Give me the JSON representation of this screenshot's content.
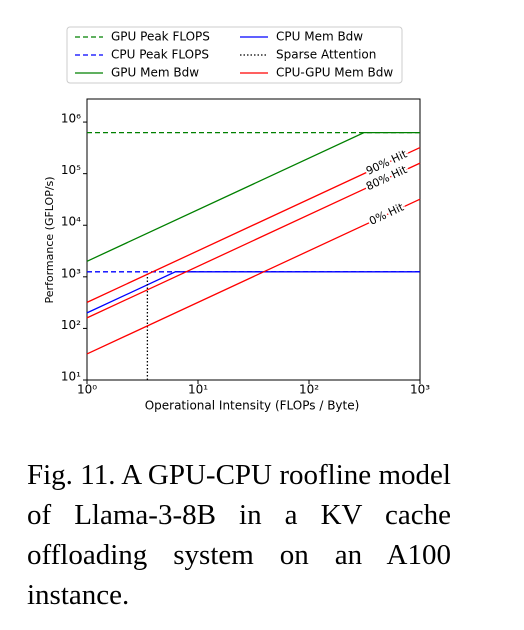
{
  "chart_data": {
    "type": "line",
    "x_label": "Operational Intensity (FLOPs / Byte)",
    "y_label": "Performance (GFLOP/s)",
    "log_x": true,
    "log_y": true,
    "xlim": [
      1,
      1000
    ],
    "ylim": [
      10,
      2800000
    ],
    "xticks": [
      {
        "value": 1,
        "label": "10⁰"
      },
      {
        "value": 10,
        "label": "10¹"
      },
      {
        "value": 100,
        "label": "10²"
      },
      {
        "value": 1000,
        "label": "10³"
      }
    ],
    "yticks": [
      {
        "value": 10,
        "label": "10¹"
      },
      {
        "value": 100,
        "label": "10²"
      },
      {
        "value": 1000,
        "label": "10³"
      },
      {
        "value": 10000,
        "label": "10⁴"
      },
      {
        "value": 100000,
        "label": "10⁵"
      },
      {
        "value": 1000000,
        "label": "10⁶"
      }
    ],
    "series": [
      {
        "name": "GPU Peak FLOPS",
        "color": "#008000",
        "style": "dashed",
        "x": [
          1,
          1000
        ],
        "values": [
          624000,
          624000
        ]
      },
      {
        "name": "CPU Peak FLOPS",
        "color": "#0000ff",
        "style": "dashed",
        "x": [
          1,
          1000
        ],
        "values": [
          1250,
          1250
        ]
      },
      {
        "name": "GPU Mem Bdw",
        "color": "#008000",
        "style": "solid",
        "x": [
          1,
          312,
          1000
        ],
        "values": [
          2000,
          624000,
          624000
        ]
      },
      {
        "name": "CPU Mem Bdw",
        "color": "#0000ff",
        "style": "solid",
        "x": [
          1,
          6.25,
          1000
        ],
        "values": [
          200,
          1250,
          1250
        ]
      },
      {
        "name": "Sparse Attention",
        "color": "#000000",
        "style": "dotted",
        "x": [
          3.5,
          3.5
        ],
        "values": [
          10,
          1250
        ]
      },
      {
        "name": "CPU-GPU Mem Bdw",
        "color": "#ff0000",
        "style": "solid",
        "x": [
          1,
          1000
        ],
        "lines": [
          {
            "label": "90% Hit",
            "values": [
              320,
              320000
            ]
          },
          {
            "label": "80% Hit",
            "values": [
              160,
              160000
            ]
          },
          {
            "label": "0% Hit",
            "values": [
              32,
              32000
            ]
          }
        ]
      }
    ],
    "legend": "upper-center"
  },
  "caption": "Fig. 11. A GPU-CPU roofline model of Llama-3-8B in a KV cache offloading system on an A100 instance."
}
